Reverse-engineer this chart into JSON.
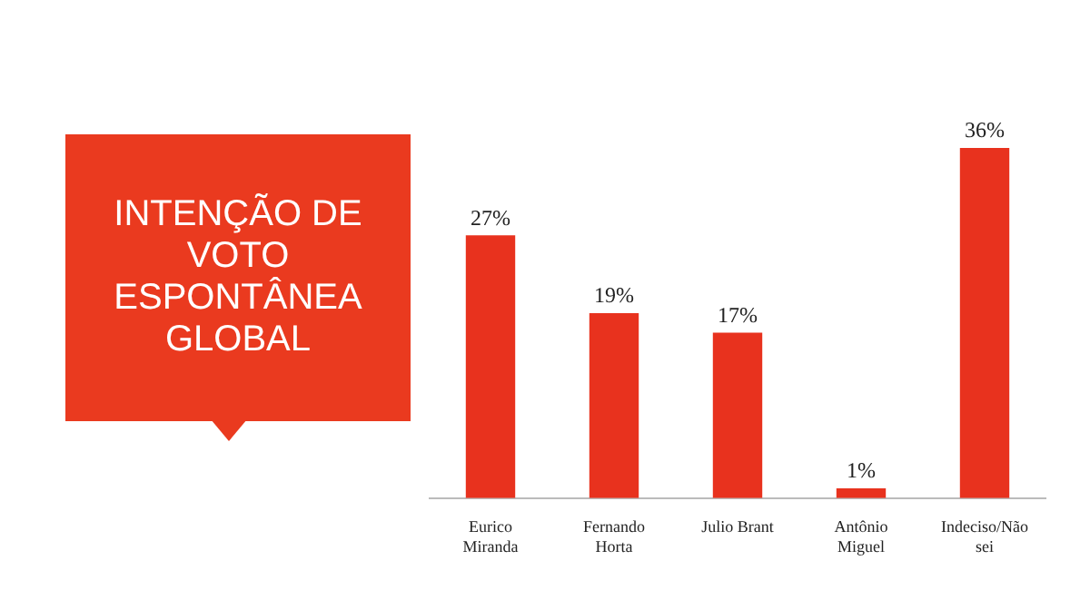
{
  "chart_data": {
    "type": "bar",
    "title": "INTENÇÃO DE VOTO ESPONTÂNEA GLOBAL",
    "categories": [
      "Eurico Miranda",
      "Fernando Horta",
      "Julio Brant",
      "Antônio Miguel",
      "Indeciso/Não sei"
    ],
    "values": [
      27,
      19,
      17,
      1,
      36
    ],
    "value_labels": [
      "27%",
      "19%",
      "17%",
      "1%",
      "36%"
    ],
    "color": "#e8321e",
    "grid": false,
    "legend": false
  }
}
